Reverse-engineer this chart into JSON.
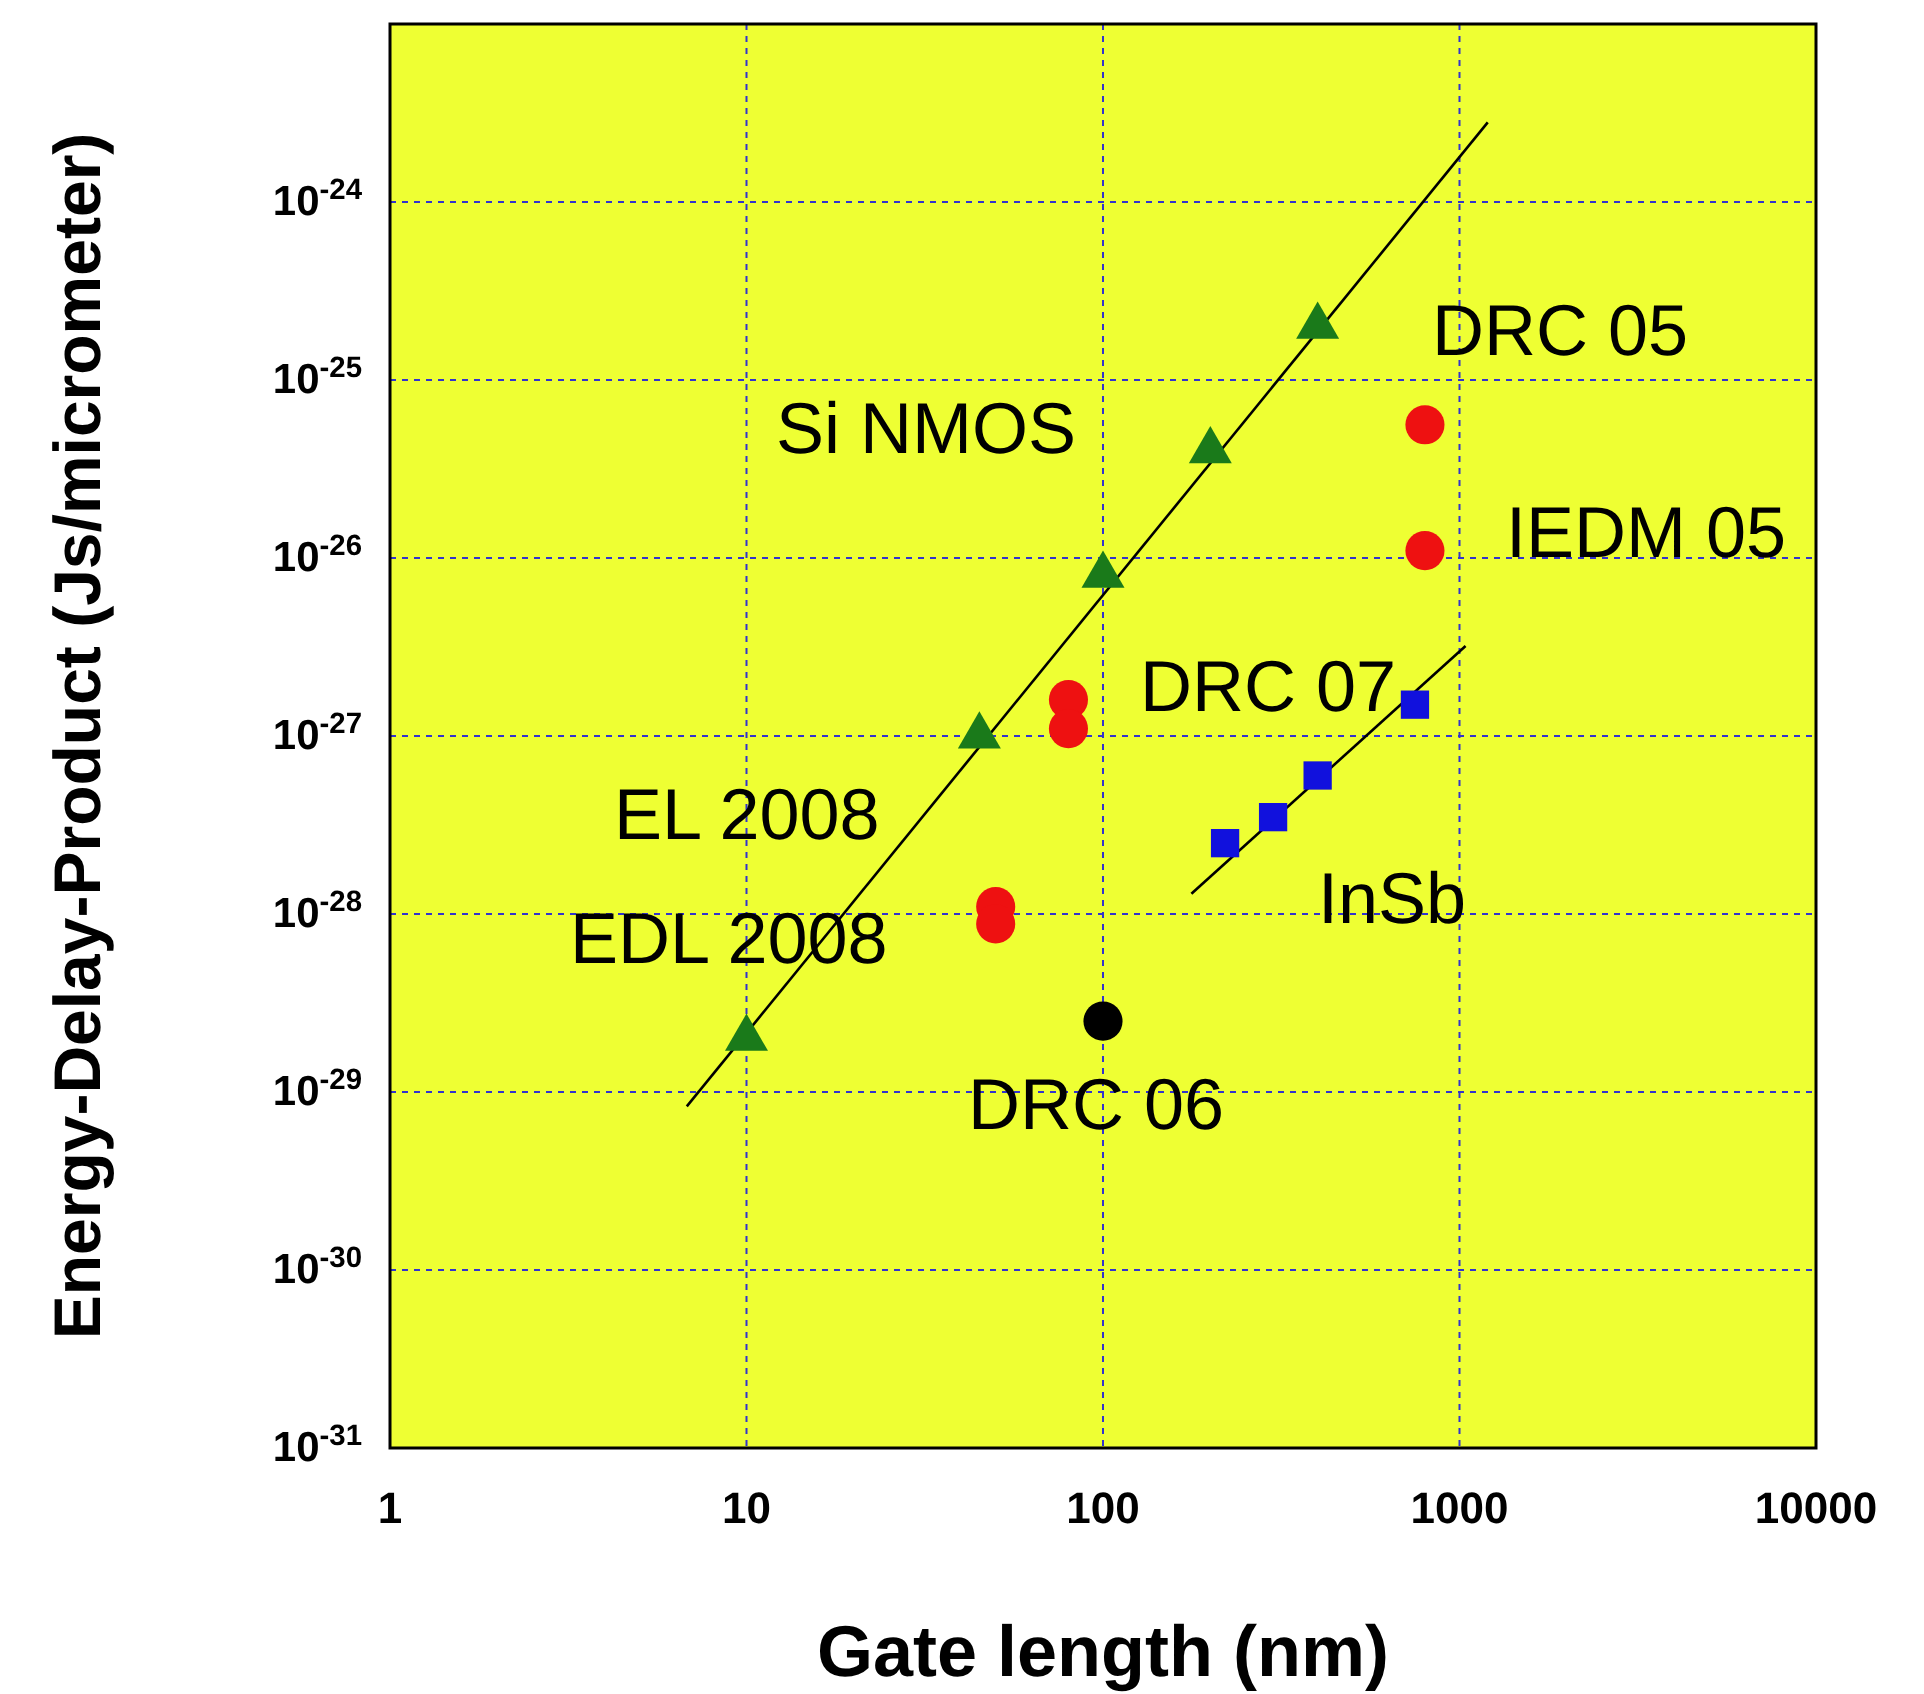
{
  "chart_data": {
    "type": "scatter",
    "xlabel": "Gate length (nm)",
    "ylabel": "Energy-Delay-Product (Js/micrometer)",
    "log": "xy",
    "grid": true,
    "xlim": [
      1,
      10000
    ],
    "xticks": [
      1,
      10,
      100,
      1000,
      10000
    ],
    "ylim": [
      1e-31,
      1e-23
    ],
    "yticks": [
      {
        "value": 1e-31,
        "label": "10$^{-31}$"
      },
      {
        "value": 1e-30,
        "label": "10$^{-30}$"
      },
      {
        "value": 1e-29,
        "label": "10$^{-29}$"
      },
      {
        "value": 1e-28,
        "label": "10$^{-28}$"
      },
      {
        "value": 1e-27,
        "label": "10$^{-27}$"
      },
      {
        "value": 1e-26,
        "label": "10$^{-26}$"
      },
      {
        "value": 1e-25,
        "label": "10$^{-25}$"
      },
      {
        "value": 1e-24,
        "label": "10$^{-24}$"
      }
    ],
    "series": [
      {
        "type": "line",
        "color": "#000000",
        "x": [
          6.8,
          1200
        ],
        "values": [
          8.3e-30,
          2.8e-24
        ]
      },
      {
        "type": "line",
        "color": "#000000",
        "x": [
          177,
          1040
        ],
        "values": [
          1.3e-28,
          3.2e-27
        ]
      },
      {
        "color": "#1a7a1a",
        "marker": "triangle",
        "x": [
          10,
          45,
          100,
          200,
          400
        ],
        "values": [
          2e-29,
          1e-27,
          8e-27,
          4e-26,
          2e-25
        ]
      },
      {
        "color": "#ee1111",
        "marker": "circle",
        "x": [
          80,
          80,
          50,
          50,
          800,
          800
        ],
        "values": [
          1.6e-27,
          1.1e-27,
          1.1e-28,
          8.8e-29,
          5.6e-26,
          1.1e-26
        ]
      },
      {
        "color": "#000000",
        "marker": "circle",
        "x": [
          100
        ],
        "values": [
          2.5e-29
        ]
      },
      {
        "color": "#1111dd",
        "marker": "square",
        "x": [
          220,
          300,
          400,
          750
        ],
        "values": [
          2.5e-28,
          3.5e-28,
          6e-28,
          1.5e-27
        ]
      }
    ],
    "annotations": [
      "DRC 05",
      "Si NMOS",
      "IEDM 05",
      "DRC 07",
      "EL 2008",
      "EDL 2008",
      "InSb",
      "DRC 06"
    ]
  }
}
